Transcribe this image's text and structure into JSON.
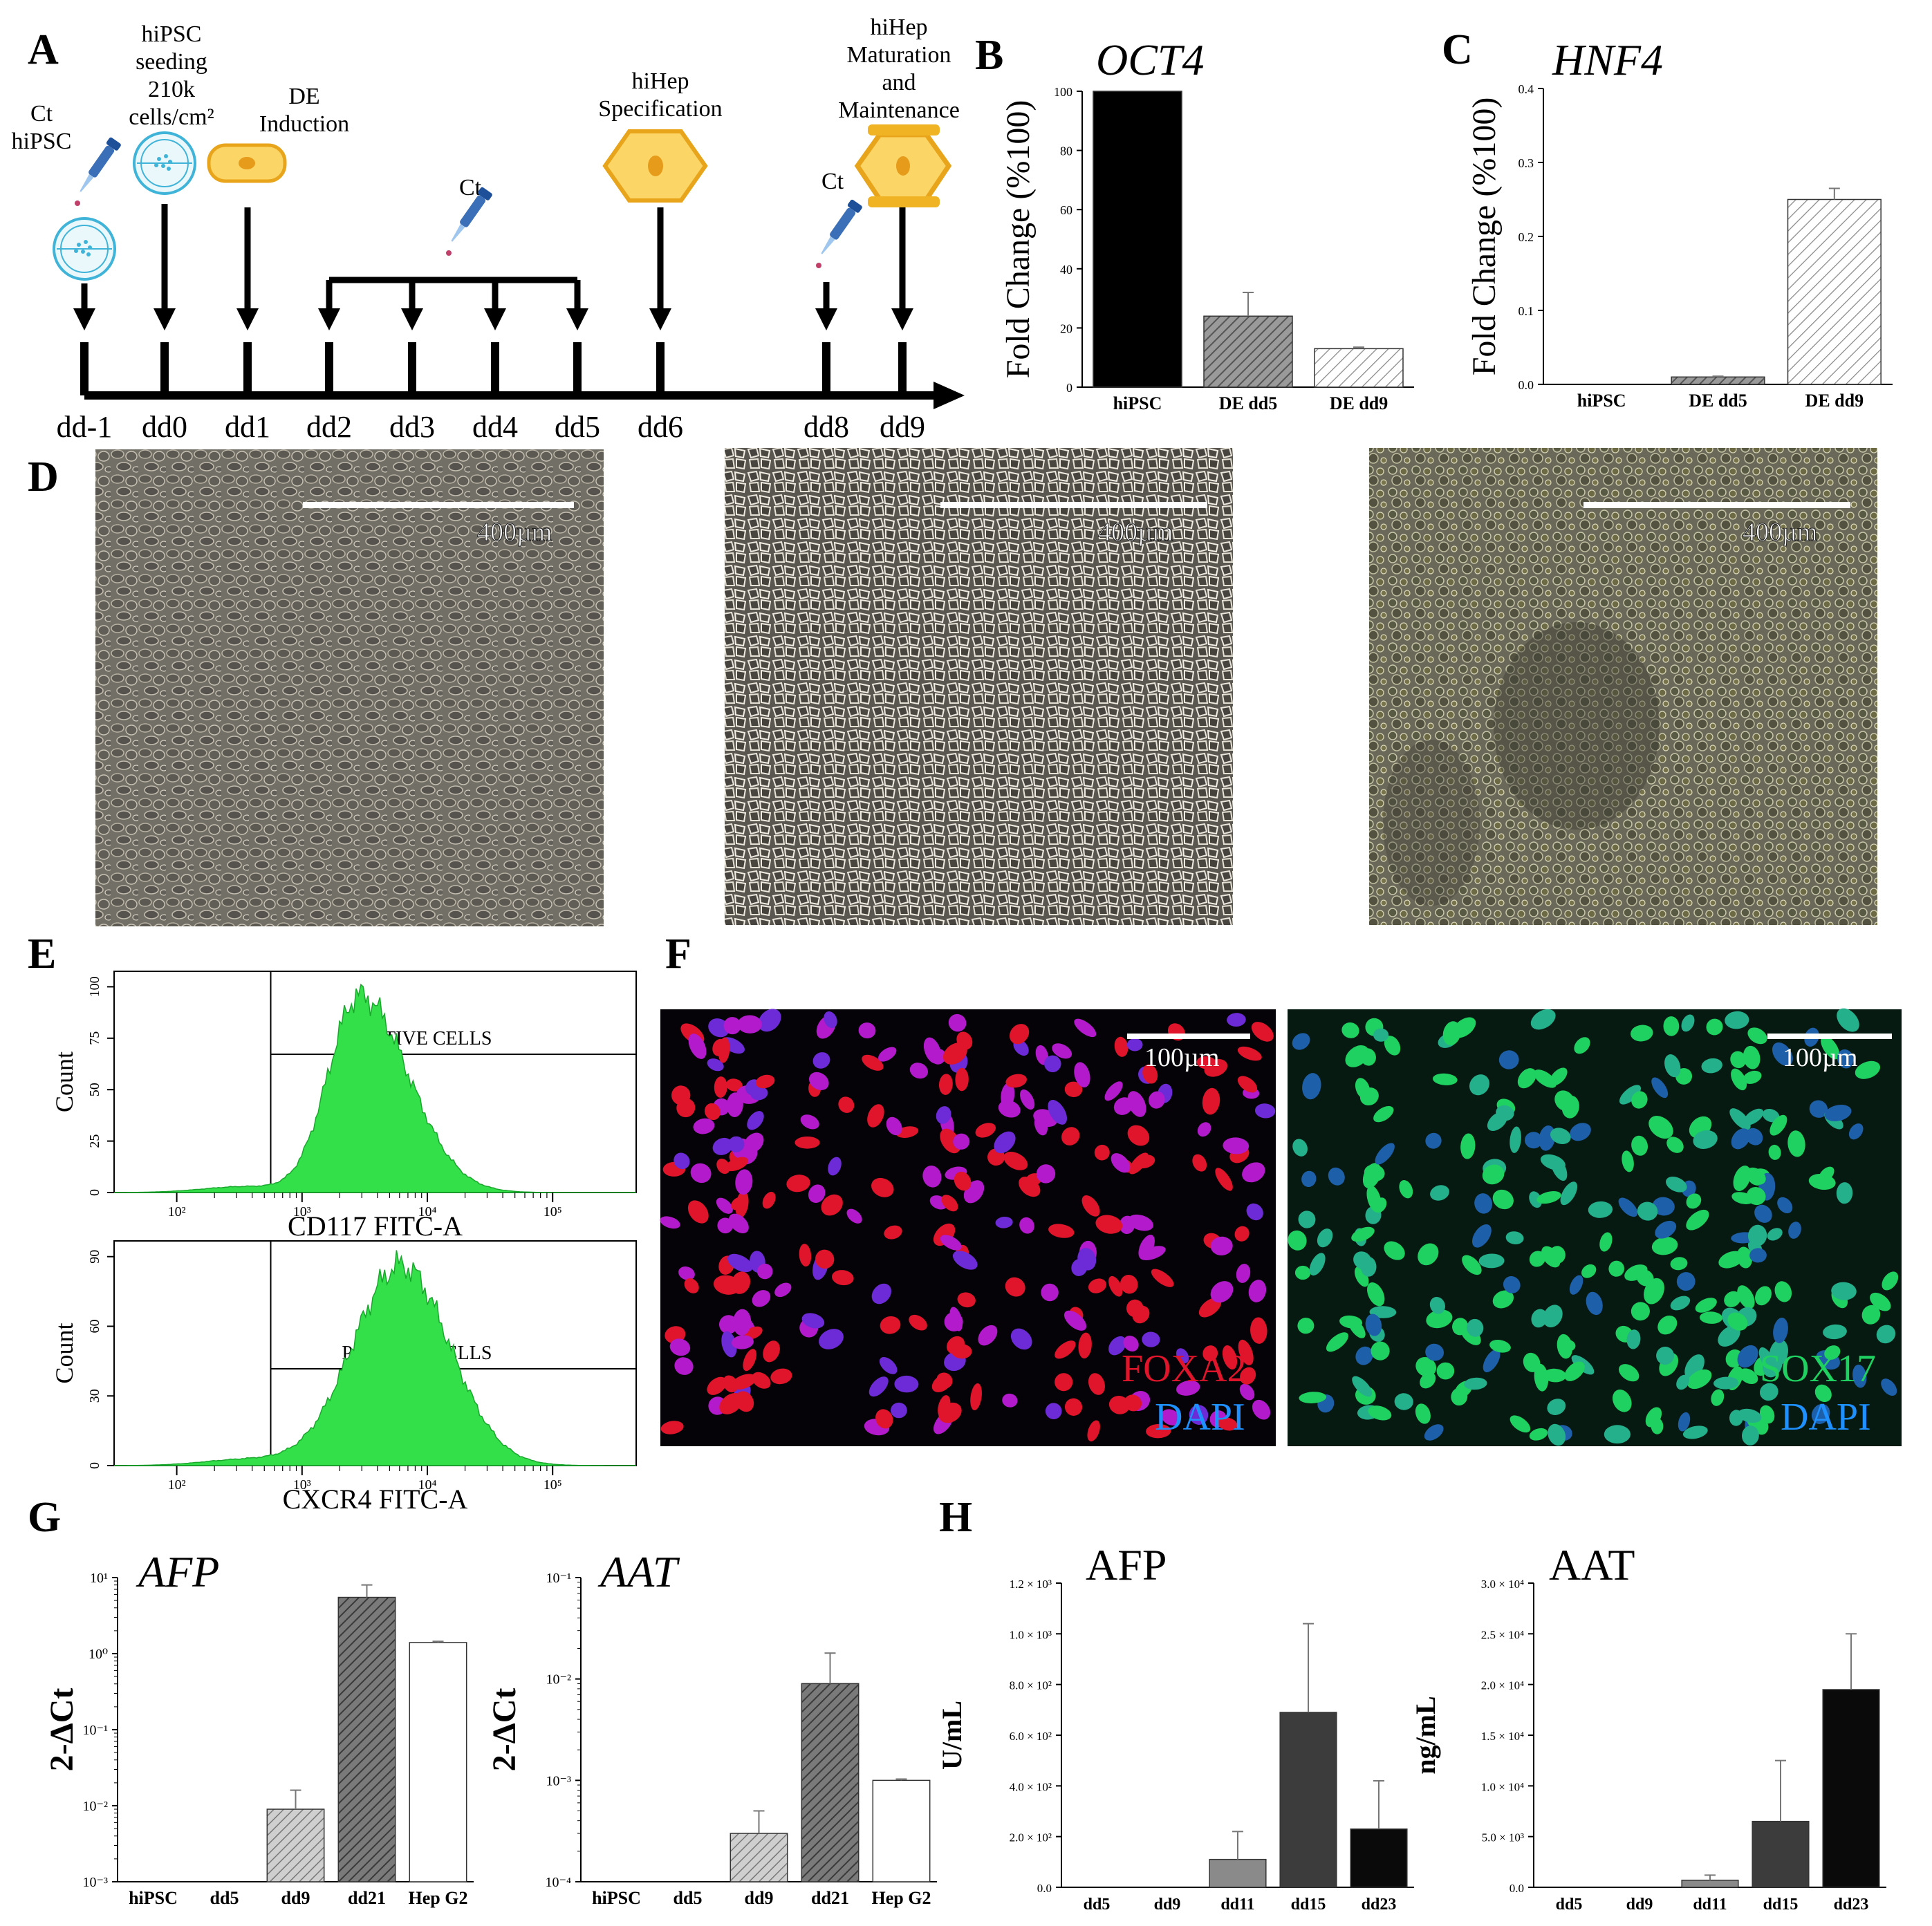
{
  "panels": {
    "A": {
      "letter": "A",
      "steps": [
        {
          "label": "Ct\nhiPSC",
          "day": "dd-1"
        },
        {
          "label": "hiPSC\nseeding\n210k\ncells/cm²",
          "day": "dd0"
        },
        {
          "label": "DE\nInduction",
          "day": "dd1"
        },
        {
          "label": "",
          "day": "dd2"
        },
        {
          "label": "Ct",
          "day": "dd3"
        },
        {
          "label": "",
          "day": "dd4"
        },
        {
          "label": "",
          "day": "dd5"
        },
        {
          "label": "hiHep\nSpecification",
          "day": "dd6"
        },
        {
          "label": "Ct",
          "day": "dd8"
        },
        {
          "label": "hiHep\nMaturation\nand\nMaintenance",
          "day": "dd9"
        }
      ]
    },
    "B": {
      "letter": "B"
    },
    "C": {
      "letter": "C"
    },
    "D": {
      "letter": "D",
      "scale_bar": "400µm"
    },
    "E": {
      "letter": "E",
      "gate_label": "POSITIVE CELLS"
    },
    "F": {
      "letter": "F",
      "scale_bar": "100µm",
      "stains": [
        {
          "marker": "FOXA2",
          "counter": "DAPI",
          "marker_color": "#e0142a",
          "counter_color": "#1e90ff"
        },
        {
          "marker": "SOX17",
          "counter": "DAPI",
          "marker_color": "#1fd160",
          "counter_color": "#1e90ff"
        }
      ]
    },
    "G": {
      "letter": "G"
    },
    "H": {
      "letter": "H"
    }
  },
  "chart_data": [
    {
      "id": "B",
      "type": "bar",
      "title": "OCT4",
      "ylabel": "Fold Change (%100)",
      "categories": [
        "hiPSC",
        "DE dd5",
        "DE dd9"
      ],
      "values": [
        100,
        24,
        13
      ],
      "errors": [
        0,
        8,
        0.5
      ],
      "ylim": [
        0,
        100
      ],
      "yticks": [
        "0",
        "20",
        "40",
        "60",
        "80",
        "100"
      ]
    },
    {
      "id": "C",
      "type": "bar",
      "title": "HNF4",
      "ylabel": "Fold Change (%100)",
      "categories": [
        "hiPSC",
        "DE dd5",
        "DE dd9"
      ],
      "values": [
        0,
        0.01,
        0.25
      ],
      "errors": [
        0,
        0.001,
        0.015
      ],
      "ylim": [
        0,
        0.4
      ],
      "yticks": [
        "0.0",
        "0.1",
        "0.2",
        "0.3",
        "0.4"
      ]
    },
    {
      "id": "E1",
      "type": "area",
      "xlabel": "CD117 FITC-A",
      "ylabel": "Count",
      "yticks": [
        "0",
        "25",
        "50",
        "75",
        "100"
      ],
      "xticks": [
        "10²",
        "10³",
        "10⁴",
        "10⁵"
      ],
      "ylim": [
        0,
        105
      ]
    },
    {
      "id": "E2",
      "type": "area",
      "xlabel": "CXCR4 FITC-A",
      "ylabel": "Count",
      "yticks": [
        "0",
        "30",
        "60",
        "90"
      ],
      "xticks": [
        "10²",
        "10³",
        "10⁴",
        "10⁵"
      ],
      "ylim": [
        0,
        95
      ]
    },
    {
      "id": "G1",
      "type": "bar",
      "title": "AFP",
      "ylabel": "2-ΔCt",
      "log": true,
      "categories": [
        "hiPSC",
        "dd5",
        "dd9",
        "dd21",
        "Hep G2"
      ],
      "values": [
        0,
        0,
        0.009,
        5.5,
        1.4
      ],
      "errors": [
        0,
        0,
        0.007,
        2.5,
        0.05
      ],
      "ylim_exp": [
        -3,
        1
      ],
      "yticks": [
        "10⁻³",
        "10⁻²",
        "10⁻¹",
        "10⁰",
        "10¹"
      ]
    },
    {
      "id": "G2",
      "type": "bar",
      "title": "AAT",
      "ylabel": "2-ΔCt",
      "log": true,
      "categories": [
        "hiPSC",
        "dd5",
        "dd9",
        "dd21",
        "Hep G2"
      ],
      "values": [
        0,
        0,
        0.0003,
        0.009,
        0.001
      ],
      "errors": [
        0,
        0,
        0.0002,
        0.009,
        3e-05
      ],
      "ylim_exp": [
        -4,
        -1
      ],
      "yticks": [
        "10⁻⁴",
        "10⁻³",
        "10⁻²",
        "10⁻¹"
      ]
    },
    {
      "id": "H1",
      "type": "bar",
      "title": "AFP",
      "ylabel": "U/mL",
      "categories": [
        "dd5",
        "dd9",
        "dd11",
        "dd15",
        "dd23"
      ],
      "values": [
        0,
        0,
        110,
        690,
        230
      ],
      "errors": [
        0,
        0,
        110,
        350,
        190
      ],
      "ylim": [
        0,
        1200
      ],
      "yticks": [
        "0.0",
        "2.0 × 10²",
        "4.0 × 10²",
        "6.0 × 10²",
        "8.0 × 10²",
        "1.0 × 10³",
        "1.2 × 10³"
      ]
    },
    {
      "id": "H2",
      "type": "bar",
      "title": "AAT",
      "ylabel": "ng/mL",
      "categories": [
        "dd5",
        "dd9",
        "dd11",
        "dd15",
        "dd23"
      ],
      "values": [
        0,
        0,
        700,
        6500,
        19500
      ],
      "errors": [
        0,
        0,
        500,
        6000,
        5500
      ],
      "ylim": [
        0,
        30000
      ],
      "yticks": [
        "0.0",
        "5.0 × 10³",
        "1.0 × 10⁴",
        "1.5 × 10⁴",
        "2.0 × 10⁴",
        "2.5 × 10⁴",
        "3.0 × 10⁴"
      ]
    }
  ]
}
